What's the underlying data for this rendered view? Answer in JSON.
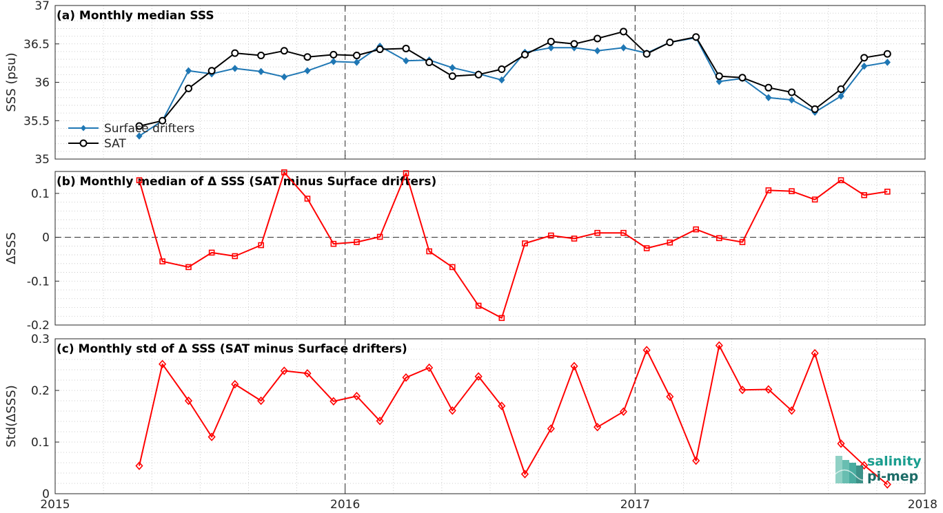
{
  "colors": {
    "drifters": "#1f77b4",
    "sat": "#000000",
    "delta": "#ff0000",
    "logo_teal": "#1a9e8f",
    "logo_dark": "#1b6b66"
  },
  "x_ticks": [
    "2015",
    "2016",
    "2017",
    "2018"
  ],
  "x_tick_values": [
    2015,
    2016,
    2017,
    2018
  ],
  "logo": {
    "line1": "salinity",
    "line2": "pi-mep",
    "icon": "salinity-wave-icon"
  },
  "chart_data": [
    {
      "type": "line",
      "panel": "a",
      "title": "(a) Monthly median SSS",
      "ylabel": "SSS (psu)",
      "xlim": [
        2015,
        2018
      ],
      "ylim": [
        35,
        37
      ],
      "y_ticks": [
        35,
        35.5,
        36,
        36.5,
        37
      ],
      "y_tick_labels": [
        "35",
        "35.5",
        "36",
        "36.5",
        "37"
      ],
      "grid": true,
      "legend": "lower-left",
      "x": [
        2015.29,
        2015.37,
        2015.46,
        2015.54,
        2015.62,
        2015.71,
        2015.79,
        2015.87,
        2015.96,
        2016.04,
        2016.12,
        2016.21,
        2016.29,
        2016.37,
        2016.46,
        2016.54,
        2016.62,
        2016.71,
        2016.79,
        2016.87,
        2016.96,
        2017.04,
        2017.12,
        2017.21,
        2017.29,
        2017.37,
        2017.46,
        2017.54,
        2017.62,
        2017.71,
        2017.79,
        2017.87
      ],
      "series": [
        {
          "name": "Surface drifters",
          "marker": "diamond-filled",
          "values": [
            35.3,
            35.5,
            36.15,
            36.11,
            36.18,
            36.14,
            36.07,
            36.15,
            36.27,
            36.26,
            36.47,
            36.28,
            36.29,
            36.19,
            36.11,
            36.03,
            36.39,
            36.45,
            36.45,
            36.41,
            36.45,
            36.38,
            36.52,
            36.58,
            36.01,
            36.05,
            35.8,
            35.77,
            35.61,
            35.82,
            36.21,
            36.26
          ]
        },
        {
          "name": "SAT",
          "marker": "circle-open",
          "values": [
            35.43,
            35.5,
            35.92,
            36.15,
            36.38,
            36.35,
            36.41,
            36.33,
            36.36,
            36.35,
            36.43,
            36.44,
            36.26,
            36.08,
            36.1,
            36.17,
            36.36,
            36.53,
            36.5,
            36.57,
            36.66,
            36.37,
            36.52,
            36.59,
            36.08,
            36.06,
            35.93,
            35.87,
            35.65,
            35.91,
            36.32,
            36.37
          ]
        }
      ]
    },
    {
      "type": "line",
      "panel": "b",
      "title": "(b) Monthly median of Δ SSS (SAT minus Surface drifters)",
      "ylabel": "ΔSSS",
      "xlim": [
        2015,
        2018
      ],
      "ylim": [
        -0.2,
        0.15
      ],
      "y_ticks": [
        -0.2,
        -0.1,
        0,
        0.1
      ],
      "y_tick_labels": [
        "-0.2",
        "-0.1",
        "0",
        "0.1"
      ],
      "grid": true,
      "zero_line": true,
      "x": [
        2015.29,
        2015.37,
        2015.46,
        2015.54,
        2015.62,
        2015.71,
        2015.79,
        2015.87,
        2015.96,
        2016.04,
        2016.12,
        2016.21,
        2016.29,
        2016.37,
        2016.46,
        2016.54,
        2016.62,
        2016.71,
        2016.79,
        2016.87,
        2016.96,
        2017.04,
        2017.12,
        2017.21,
        2017.29,
        2017.37,
        2017.46,
        2017.54,
        2017.62,
        2017.71,
        2017.79,
        2017.87
      ],
      "series": [
        {
          "marker": "square-open",
          "values": [
            0.13,
            -0.055,
            -0.068,
            -0.035,
            -0.043,
            -0.018,
            0.148,
            0.088,
            -0.015,
            -0.011,
            0.001,
            0.146,
            -0.032,
            -0.068,
            -0.156,
            -0.184,
            -0.014,
            0.004,
            -0.003,
            0.01,
            0.01,
            -0.025,
            -0.012,
            0.018,
            -0.002,
            -0.011,
            0.107,
            0.105,
            0.086,
            0.13,
            0.096,
            0.104
          ]
        }
      ]
    },
    {
      "type": "line",
      "panel": "c",
      "title": "(c) Monthly std of Δ SSS (SAT minus Surface drifters)",
      "ylabel": "Std(ΔSSS)",
      "xlim": [
        2015,
        2018
      ],
      "ylim": [
        0,
        0.3
      ],
      "y_ticks": [
        0,
        0.1,
        0.2,
        0.3
      ],
      "y_tick_labels": [
        "0",
        "0.1",
        "0.2",
        "0.3"
      ],
      "grid": true,
      "x": [
        2015.29,
        2015.37,
        2015.46,
        2015.54,
        2015.62,
        2015.71,
        2015.79,
        2015.87,
        2015.96,
        2016.04,
        2016.12,
        2016.21,
        2016.29,
        2016.37,
        2016.46,
        2016.54,
        2016.62,
        2016.71,
        2016.79,
        2016.87,
        2016.96,
        2017.04,
        2017.12,
        2017.21,
        2017.29,
        2017.37,
        2017.46,
        2017.54,
        2017.62,
        2017.71,
        2017.79,
        2017.87
      ],
      "series": [
        {
          "marker": "diamond-open",
          "values": [
            0.054,
            0.251,
            0.18,
            0.11,
            0.212,
            0.18,
            0.238,
            0.233,
            0.179,
            0.189,
            0.141,
            0.225,
            0.244,
            0.161,
            0.227,
            0.17,
            0.038,
            0.126,
            0.247,
            0.129,
            0.159,
            0.278,
            0.188,
            0.064,
            0.287,
            0.201,
            0.202,
            0.161,
            0.272,
            0.097,
            0.055,
            0.018
          ]
        }
      ]
    }
  ]
}
